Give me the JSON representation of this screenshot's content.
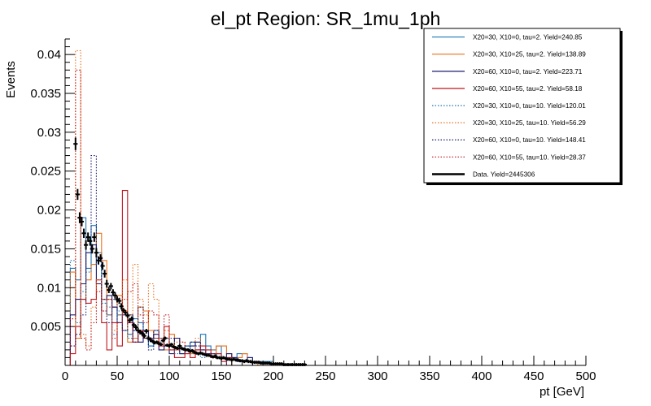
{
  "chart_data": {
    "type": "histogram",
    "title": "el_pt Region: SR_1mu_1ph",
    "xlabel": "pt [GeV]",
    "ylabel": "Events",
    "xlim": [
      0,
      500
    ],
    "ylim": [
      0,
      0.042
    ],
    "bin_width": 5,
    "x_ticks": [
      0,
      50,
      100,
      150,
      200,
      250,
      300,
      350,
      400,
      450,
      500
    ],
    "y_ticks": [
      0.005,
      0.01,
      0.015,
      0.02,
      0.025,
      0.03,
      0.035,
      0.04
    ],
    "y_tick_labels": [
      "0.005",
      "0.01",
      "0.015",
      "0.02",
      "0.025",
      "0.03",
      "0.035",
      "0.04"
    ],
    "grid": false,
    "legend_position": "top-right",
    "series": [
      {
        "name": "X20=30, X10=0, tau=2. Yield=240.85",
        "color": "#1f77b4",
        "style": "solid",
        "start": 5,
        "values": [
          0.0125,
          0.011,
          0.019,
          0.0125,
          0.018,
          0.0145,
          0.0085,
          0.0065,
          0.0075,
          0.0065,
          0.0045,
          0.004,
          0.006,
          0.0055,
          0.0035,
          0.0025,
          0.0045,
          0.0035,
          0.0035,
          0.0025,
          0.002,
          0.0015,
          0.002,
          0.003,
          0.002,
          0.004,
          0.0025,
          0.002,
          0.0025,
          0.001,
          0.001,
          0.001,
          0.0015,
          0.0015,
          0.001,
          0.0005,
          0.0005,
          0.0005,
          0.0005
        ]
      },
      {
        "name": "X20=30, X10=25, tau=2. Yield=138.89",
        "color": "#e8711c",
        "style": "solid",
        "start": 5,
        "values": [
          0.012,
          0.0035,
          0.0085,
          0.011,
          0.013,
          0.017,
          0.0135,
          0.0085,
          0.0075,
          0.009,
          0.007,
          0.003,
          0.0035,
          0.0075,
          0.007,
          0.0045,
          0.0035,
          0.0035,
          0.002,
          0.004,
          0.002,
          0.0015,
          0.002,
          0.0015,
          0.002,
          0.002,
          0.0015,
          0.0015,
          0.0025,
          0.0025,
          0.0015,
          0.001,
          0.001,
          0.0015,
          0.0005,
          0.0005
        ]
      },
      {
        "name": "X20=60, X10=0, tau=2. Yield=223.71",
        "color": "#1a1a6e",
        "style": "solid",
        "start": 5,
        "values": [
          0.0065,
          0.0085,
          0.0105,
          0.0145,
          0.0155,
          0.0105,
          0.0085,
          0.009,
          0.0075,
          0.0055,
          0.0065,
          0.0065,
          0.0045,
          0.003,
          0.0045,
          0.0035,
          0.004,
          0.002,
          0.0025,
          0.0015,
          0.0035,
          0.0015,
          0.0025,
          0.0025,
          0.003,
          0.002,
          0.0015,
          0.0015,
          0.0015,
          0.001,
          0.0015,
          0.001,
          0.0005,
          0.0005,
          0.001
        ]
      },
      {
        "name": "X20=60, X10=55, tau=2. Yield=58.18",
        "color": "#c0161d",
        "style": "solid",
        "start": 5,
        "values": [
          0.0015,
          0.005,
          0.0085,
          0.008,
          0.0085,
          0.011,
          0.0055,
          0.002,
          0.0055,
          0.0025,
          0.0225,
          0.0055,
          0.003,
          0.0045,
          0.0035,
          0.0035,
          0.0035,
          0.0025,
          0.005,
          0.002,
          0.001,
          0.001,
          0.0015,
          0.001,
          0.002,
          0.0025,
          0.002,
          0.001,
          0.0015,
          0.0005,
          0.001
        ]
      },
      {
        "name": "X20=30, X10=0, tau=10. Yield=120.01",
        "color": "#1f77b4",
        "style": "dotted",
        "start": 5,
        "values": [
          0.0135,
          0.0055,
          0.0095,
          0.012,
          0.015,
          0.013,
          0.008,
          0.0075,
          0.004,
          0.007,
          0.0045,
          0.0035,
          0.0045,
          0.0055,
          0.0035,
          0.0025,
          0.0035,
          0.003,
          0.0025,
          0.002,
          0.0015,
          0.002,
          0.0025,
          0.0015,
          0.002,
          0.001,
          0.002,
          0.0015,
          0.001,
          0.001
        ]
      },
      {
        "name": "X20=30, X10=25, tau=10. Yield=56.29",
        "color": "#e8711c",
        "style": "dotted",
        "start": 5,
        "values": [
          0.006,
          0.0405,
          0.004,
          0.0025,
          0.0075,
          0.011,
          0.0085,
          0.0065,
          0.0045,
          0.0065,
          0.011,
          0.0065,
          0.013,
          0.0085,
          0.0065,
          0.0105,
          0.0085,
          0.003,
          0.0045,
          0.0025,
          0.003,
          0.003,
          0.002,
          0.0015,
          0.0035,
          0.002,
          0.0015,
          0.002,
          0.001,
          0.001
        ]
      },
      {
        "name": "X20=60, X10=0, tau=10. Yield=148.41",
        "color": "#1a1a6e",
        "style": "dotted",
        "start": 5,
        "values": [
          0.0025,
          0.004,
          0.0065,
          0.0165,
          0.027,
          0.014,
          0.007,
          0.0055,
          0.0085,
          0.0055,
          0.0045,
          0.0055,
          0.003,
          0.0075,
          0.0035,
          0.002,
          0.0045,
          0.0035,
          0.0025,
          0.0035,
          0.0035,
          0.002,
          0.002,
          0.003,
          0.0025,
          0.002,
          0.0015,
          0.0015,
          0.001,
          0.001
        ]
      },
      {
        "name": "X20=60, X10=55, tau=10. Yield=28.37",
        "color": "#c0161d",
        "style": "dotted",
        "start": 5,
        "values": [
          0.006,
          0.038,
          0.0035,
          0.002,
          0.0055,
          0.0095,
          0.007,
          0.0085,
          0.0035,
          0.0055,
          0.0085,
          0.0095,
          0.0105,
          0.0065,
          0.0055,
          0.007,
          0.0065,
          0.0025,
          0.0065,
          0.002,
          0.002,
          0.003,
          0.0015,
          0.002,
          0.002,
          0.0015,
          0.002,
          0.0015,
          0.001,
          0.001
        ]
      },
      {
        "name": "Data. Yield=2445306",
        "color": "#000000",
        "style": "points",
        "x": [
          10,
          12,
          14,
          16,
          18,
          20,
          22,
          24,
          26,
          28,
          30,
          32,
          34,
          36,
          38,
          40,
          42,
          44,
          46,
          48,
          50,
          52,
          54,
          56,
          58,
          60,
          62,
          64,
          66,
          68,
          70,
          72,
          74,
          76,
          78,
          80,
          82,
          84,
          86,
          88,
          90,
          92,
          94,
          96,
          98,
          100,
          102,
          104,
          106,
          108,
          110,
          112,
          114,
          116,
          118,
          120,
          122,
          124,
          126,
          128,
          130,
          132,
          134,
          136,
          138,
          140,
          142,
          144,
          146,
          148,
          150,
          152,
          154,
          156,
          158,
          160,
          162,
          164,
          166,
          168,
          170,
          172,
          174,
          176,
          178,
          180,
          182,
          184,
          186,
          188,
          190,
          192,
          194,
          196,
          198,
          200,
          202,
          204,
          206,
          208,
          210,
          212,
          214,
          216,
          218,
          220,
          222,
          224,
          226,
          228,
          230
        ],
        "y": [
          0.0285,
          0.022,
          0.019,
          0.0185,
          0.017,
          0.0155,
          0.0165,
          0.016,
          0.015,
          0.0165,
          0.0145,
          0.0135,
          0.0138,
          0.0128,
          0.0118,
          0.0105,
          0.0097,
          0.0102,
          0.0094,
          0.009,
          0.0085,
          0.0083,
          0.0076,
          0.0071,
          0.0068,
          0.0064,
          0.0058,
          0.006,
          0.0052,
          0.0049,
          0.0045,
          0.0043,
          0.0041,
          0.0038,
          0.0044,
          0.0035,
          0.0033,
          0.0031,
          0.0029,
          0.003,
          0.0028,
          0.0027,
          0.0032,
          0.0035,
          0.0026,
          0.0025,
          0.0027,
          0.0024,
          0.0023,
          0.0022,
          0.0025,
          0.0022,
          0.0021,
          0.002,
          0.002,
          0.0018,
          0.0019,
          0.0017,
          0.0016,
          0.0015,
          0.0016,
          0.0015,
          0.0014,
          0.0013,
          0.0013,
          0.0012,
          0.0011,
          0.0012,
          0.001,
          0.001,
          0.0009,
          0.001,
          0.0009,
          0.0008,
          0.0008,
          0.0007,
          0.0008,
          0.0007,
          0.0007,
          0.0006,
          0.0006,
          0.0005,
          0.0006,
          0.0005,
          0.0005,
          0.0004,
          0.0004,
          0.0004,
          0.0004,
          0.0003,
          0.0003,
          0.0003,
          0.0003,
          0.0003,
          0.0002,
          0.0002,
          0.0002,
          0.0002,
          0.0002,
          0.0002,
          0.0001,
          0.0001,
          0.0001,
          0.0001,
          0.0001,
          0.0001,
          0.0001,
          0.0001,
          0.0001,
          0.0001,
          0.0001
        ],
        "err": [
          0.0008,
          0.0007,
          0.0007,
          0.0006,
          0.0006,
          0.0006,
          0.0006,
          0.0006,
          0.0006,
          0.0006,
          0.0006,
          0.0005,
          0.0005,
          0.0005,
          0.0005,
          0.0005,
          0.0004,
          0.0004,
          0.0004,
          0.0004,
          0.0004,
          0.0004,
          0.0004,
          0.0003,
          0.0003,
          0.0003,
          0.0003,
          0.0003,
          0.0003,
          0.0003,
          0.0003,
          0.0003,
          0.0003,
          0.0003,
          0.0003,
          0.0003,
          0.0003,
          0.0002,
          0.0002,
          0.0002,
          0.0002,
          0.0002,
          0.0002,
          0.0002,
          0.0002,
          0.0002,
          0.0002,
          0.0002,
          0.0002,
          0.0002,
          0.0002,
          0.0002,
          0.0002,
          0.0002,
          0.0002,
          0.0002,
          0.0002,
          0.0002,
          0.0002,
          0.0002,
          0.0002,
          0.0002,
          0.0002,
          0.0002,
          0.0002,
          0.0002,
          0.0002,
          0.0002,
          0.0002,
          0.0002,
          0.0002,
          0.0002,
          0.0002,
          0.0002,
          0.0002,
          0.0002,
          0.0002,
          0.0002,
          0.0002,
          0.0002,
          0.0002,
          0.0002,
          0.0002,
          0.0002,
          0.0002,
          0.0002,
          0.0002,
          0.0002,
          0.0002,
          0.0002,
          0.0002,
          0.0002,
          0.0002,
          0.0002,
          0.0002,
          0.0002,
          0.0002,
          0.0002,
          0.0002,
          0.0002,
          0.0002,
          0.0002,
          0.0002,
          0.0002,
          0.0002,
          0.0002,
          0.0002,
          0.0002,
          0.0002,
          0.0002,
          0.0002
        ]
      }
    ]
  }
}
